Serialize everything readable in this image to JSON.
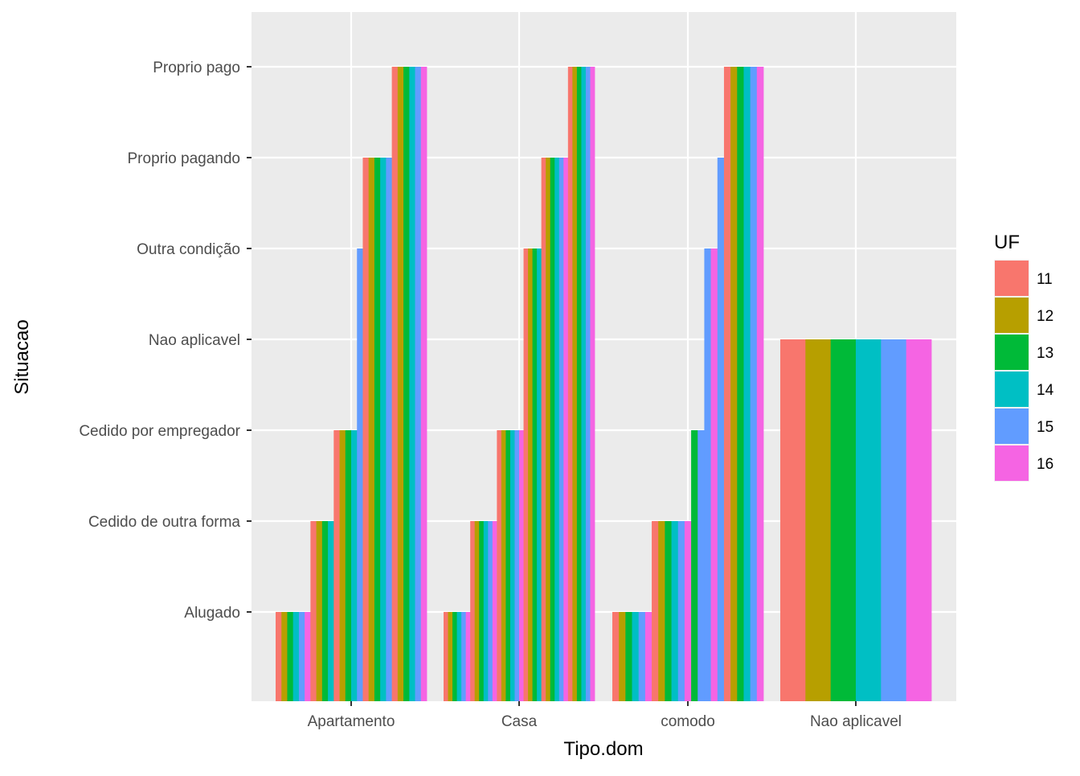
{
  "chart_data": {
    "type": "bar",
    "xlabel": "Tipo.dom",
    "ylabel": "Situacao",
    "categories": [
      "Apartamento",
      "Casa",
      "comodo",
      "Nao aplicavel"
    ],
    "y_levels": [
      "Alugado",
      "Cedido de outra forma",
      "Cedido por empregador",
      "Nao aplicavel",
      "Outra condição",
      "Proprio pagando",
      "Proprio pago"
    ],
    "grid": true,
    "legend": {
      "title": "UF",
      "position": "right",
      "entries": [
        "11",
        "12",
        "13",
        "14",
        "15",
        "16"
      ],
      "colors": [
        "#F8766D",
        "#B79F00",
        "#00BA38",
        "#00BFC4",
        "#619CFF",
        "#F564E3"
      ]
    },
    "groups": [
      {
        "category": "Apartamento",
        "bars": [
          {
            "uf": "11",
            "situacao": "Alugado"
          },
          {
            "uf": "12",
            "situacao": "Alugado"
          },
          {
            "uf": "13",
            "situacao": "Alugado"
          },
          {
            "uf": "14",
            "situacao": "Alugado"
          },
          {
            "uf": "15",
            "situacao": "Alugado"
          },
          {
            "uf": "16",
            "situacao": "Alugado"
          },
          {
            "uf": "11",
            "situacao": "Cedido de outra forma"
          },
          {
            "uf": "12",
            "situacao": "Cedido de outra forma"
          },
          {
            "uf": "13",
            "situacao": "Cedido de outra forma"
          },
          {
            "uf": "14",
            "situacao": "Cedido de outra forma"
          },
          {
            "uf": "11",
            "situacao": "Cedido por empregador"
          },
          {
            "uf": "12",
            "situacao": "Cedido por empregador"
          },
          {
            "uf": "13",
            "situacao": "Cedido por empregador"
          },
          {
            "uf": "14",
            "situacao": "Cedido por empregador"
          },
          {
            "uf": "15",
            "situacao": "Outra condição"
          },
          {
            "uf": "11",
            "situacao": "Proprio pagando"
          },
          {
            "uf": "12",
            "situacao": "Proprio pagando"
          },
          {
            "uf": "13",
            "situacao": "Proprio pagando"
          },
          {
            "uf": "14",
            "situacao": "Proprio pagando"
          },
          {
            "uf": "15",
            "situacao": "Proprio pagando"
          },
          {
            "uf": "11",
            "situacao": "Proprio pago"
          },
          {
            "uf": "12",
            "situacao": "Proprio pago"
          },
          {
            "uf": "13",
            "situacao": "Proprio pago"
          },
          {
            "uf": "14",
            "situacao": "Proprio pago"
          },
          {
            "uf": "15",
            "situacao": "Proprio pago"
          },
          {
            "uf": "16",
            "situacao": "Proprio pago"
          }
        ]
      },
      {
        "category": "Casa",
        "bars": [
          {
            "uf": "11",
            "situacao": "Alugado"
          },
          {
            "uf": "12",
            "situacao": "Alugado"
          },
          {
            "uf": "13",
            "situacao": "Alugado"
          },
          {
            "uf": "14",
            "situacao": "Alugado"
          },
          {
            "uf": "15",
            "situacao": "Alugado"
          },
          {
            "uf": "16",
            "situacao": "Alugado"
          },
          {
            "uf": "11",
            "situacao": "Cedido de outra forma"
          },
          {
            "uf": "12",
            "situacao": "Cedido de outra forma"
          },
          {
            "uf": "13",
            "situacao": "Cedido de outra forma"
          },
          {
            "uf": "14",
            "situacao": "Cedido de outra forma"
          },
          {
            "uf": "15",
            "situacao": "Cedido de outra forma"
          },
          {
            "uf": "16",
            "situacao": "Cedido de outra forma"
          },
          {
            "uf": "11",
            "situacao": "Cedido por empregador"
          },
          {
            "uf": "12",
            "situacao": "Cedido por empregador"
          },
          {
            "uf": "13",
            "situacao": "Cedido por empregador"
          },
          {
            "uf": "14",
            "situacao": "Cedido por empregador"
          },
          {
            "uf": "15",
            "situacao": "Cedido por empregador"
          },
          {
            "uf": "16",
            "situacao": "Cedido por empregador"
          },
          {
            "uf": "11",
            "situacao": "Outra condição"
          },
          {
            "uf": "12",
            "situacao": "Outra condição"
          },
          {
            "uf": "13",
            "situacao": "Outra condição"
          },
          {
            "uf": "14",
            "situacao": "Outra condição"
          },
          {
            "uf": "11",
            "situacao": "Proprio pagando"
          },
          {
            "uf": "12",
            "situacao": "Proprio pagando"
          },
          {
            "uf": "13",
            "situacao": "Proprio pagando"
          },
          {
            "uf": "14",
            "situacao": "Proprio pagando"
          },
          {
            "uf": "15",
            "situacao": "Proprio pagando"
          },
          {
            "uf": "16",
            "situacao": "Proprio pagando"
          },
          {
            "uf": "11",
            "situacao": "Proprio pago"
          },
          {
            "uf": "12",
            "situacao": "Proprio pago"
          },
          {
            "uf": "13",
            "situacao": "Proprio pago"
          },
          {
            "uf": "14",
            "situacao": "Proprio pago"
          },
          {
            "uf": "15",
            "situacao": "Proprio pago"
          },
          {
            "uf": "16",
            "situacao": "Proprio pago"
          }
        ]
      },
      {
        "category": "comodo",
        "bars": [
          {
            "uf": "11",
            "situacao": "Alugado"
          },
          {
            "uf": "12",
            "situacao": "Alugado"
          },
          {
            "uf": "13",
            "situacao": "Alugado"
          },
          {
            "uf": "14",
            "situacao": "Alugado"
          },
          {
            "uf": "15",
            "situacao": "Alugado"
          },
          {
            "uf": "16",
            "situacao": "Alugado"
          },
          {
            "uf": "11",
            "situacao": "Cedido de outra forma"
          },
          {
            "uf": "12",
            "situacao": "Cedido de outra forma"
          },
          {
            "uf": "13",
            "situacao": "Cedido de outra forma"
          },
          {
            "uf": "14",
            "situacao": "Cedido de outra forma"
          },
          {
            "uf": "15",
            "situacao": "Cedido de outra forma"
          },
          {
            "uf": "16",
            "situacao": "Cedido de outra forma"
          },
          {
            "uf": "13",
            "situacao": "Cedido por empregador"
          },
          {
            "uf": "15",
            "situacao": "Cedido por empregador"
          },
          {
            "uf": "15",
            "situacao": "Outra condição"
          },
          {
            "uf": "16",
            "situacao": "Outra condição"
          },
          {
            "uf": "15",
            "situacao": "Proprio pagando"
          },
          {
            "uf": "11",
            "situacao": "Proprio pago"
          },
          {
            "uf": "12",
            "situacao": "Proprio pago"
          },
          {
            "uf": "13",
            "situacao": "Proprio pago"
          },
          {
            "uf": "14",
            "situacao": "Proprio pago"
          },
          {
            "uf": "15",
            "situacao": "Proprio pago"
          },
          {
            "uf": "16",
            "situacao": "Proprio pago"
          }
        ]
      },
      {
        "category": "Nao aplicavel",
        "bars": [
          {
            "uf": "11",
            "situacao": "Nao aplicavel"
          },
          {
            "uf": "12",
            "situacao": "Nao aplicavel"
          },
          {
            "uf": "13",
            "situacao": "Nao aplicavel"
          },
          {
            "uf": "14",
            "situacao": "Nao aplicavel"
          },
          {
            "uf": "15",
            "situacao": "Nao aplicavel"
          },
          {
            "uf": "16",
            "situacao": "Nao aplicavel"
          }
        ]
      }
    ]
  }
}
